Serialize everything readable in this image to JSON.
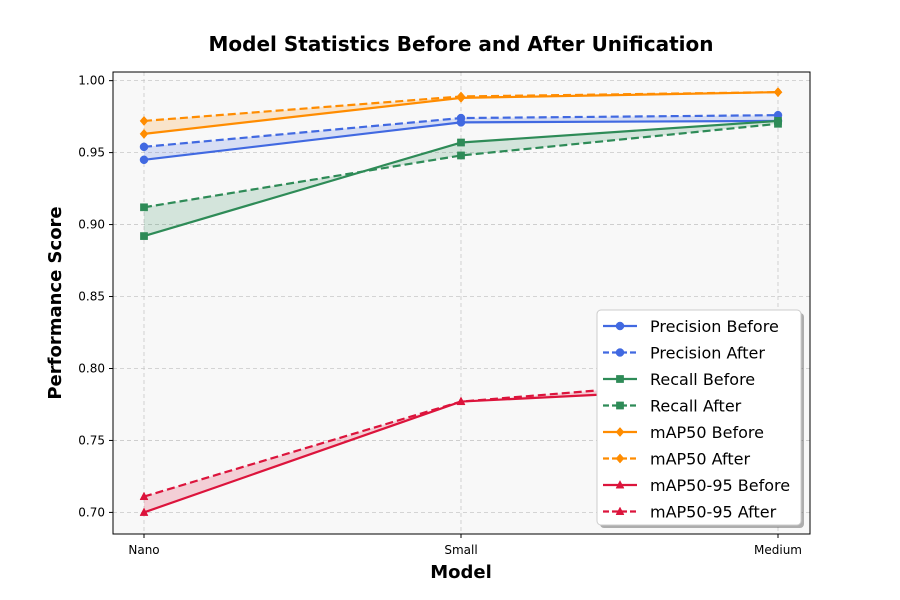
{
  "chart_data": {
    "type": "line",
    "title": "Model Statistics Before and After Unification",
    "xlabel": "Model",
    "ylabel": "Performance Score",
    "categories": [
      "Nano",
      "Small",
      "Medium"
    ],
    "ylim": [
      0.685,
      1.006
    ],
    "yticks": [
      0.7,
      0.75,
      0.8,
      0.85,
      0.9,
      0.95,
      1.0
    ],
    "grid": true,
    "legend_position": "lower-right",
    "series": [
      {
        "name": "Precision Before",
        "metric": "precision",
        "stage": "before",
        "color": "#4169E1",
        "marker": "circle",
        "values": [
          0.945,
          0.971,
          0.972
        ]
      },
      {
        "name": "Precision After",
        "metric": "precision",
        "stage": "after",
        "color": "#4169E1",
        "marker": "circle",
        "values": [
          0.954,
          0.974,
          0.976
        ]
      },
      {
        "name": "Recall Before",
        "metric": "recall",
        "stage": "before",
        "color": "#2E8B57",
        "marker": "square",
        "values": [
          0.892,
          0.957,
          0.972
        ]
      },
      {
        "name": "Recall After",
        "metric": "recall",
        "stage": "after",
        "color": "#2E8B57",
        "marker": "square",
        "values": [
          0.912,
          0.948,
          0.97
        ]
      },
      {
        "name": "mAP50 Before",
        "metric": "map50",
        "stage": "before",
        "color": "#FF8C00",
        "marker": "diamond",
        "values": [
          0.963,
          0.988,
          0.992
        ]
      },
      {
        "name": "mAP50 After",
        "metric": "map50",
        "stage": "after",
        "color": "#FF8C00",
        "marker": "diamond",
        "values": [
          0.972,
          0.989,
          0.992
        ]
      },
      {
        "name": "mAP50-95 Before",
        "metric": "map5095",
        "stage": "before",
        "color": "#DC143C",
        "marker": "triangle",
        "values": [
          0.7,
          0.777,
          0.788
        ]
      },
      {
        "name": "mAP50-95 After",
        "metric": "map5095",
        "stage": "after",
        "color": "#DC143C",
        "marker": "triangle",
        "values": [
          0.711,
          0.777,
          0.795
        ]
      }
    ]
  }
}
